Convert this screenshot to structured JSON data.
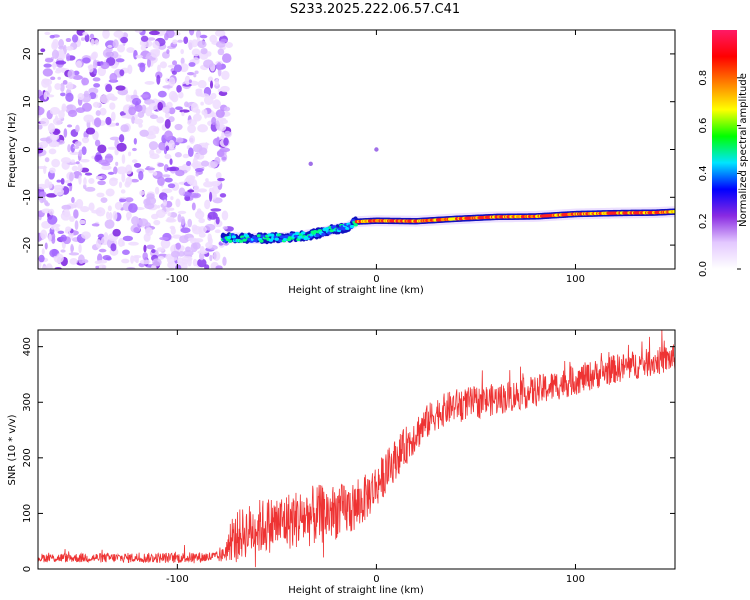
{
  "title": "S233.2025.222.06.57.C41",
  "chart_data": [
    {
      "type": "heatmap",
      "xlabel": "Height of straight line (km)",
      "ylabel": "Frequency (Hz)",
      "xlim": [
        -170,
        150
      ],
      "ylim": [
        -25,
        25
      ],
      "xticks": [
        -100,
        0,
        100
      ],
      "yticks": [
        -20,
        -10,
        0,
        10,
        20
      ],
      "colorbar": {
        "label": "Normalized spectral amplitude",
        "range": [
          0,
          1
        ],
        "ticks": [
          "0.0",
          "0.2",
          "0.4",
          "0.6",
          "0.8"
        ],
        "colors": [
          "#ffffff",
          "#e3c8ff",
          "#8a2be2",
          "#0000ff",
          "#00e5ff",
          "#00ff00",
          "#ffff00",
          "#ff8000",
          "#ff0000",
          "#ff1a66"
        ]
      },
      "noise_region_x": [
        -170,
        -77
      ],
      "ridge": {
        "x": [
          -77,
          -70,
          -60,
          -50,
          -40,
          -30,
          -20,
          -15,
          -10,
          0,
          20,
          40,
          60,
          80,
          100,
          120,
          140,
          150
        ],
        "y": [
          -18.5,
          -18.5,
          -18.6,
          -18.5,
          -18.2,
          -17.6,
          -16.6,
          -16.3,
          -15.1,
          -14.9,
          -15.0,
          -14.5,
          -14.1,
          -14.0,
          -13.5,
          -13.3,
          -13.2,
          -13.0
        ],
        "peak_amplitude_x": [
          -10,
          150
        ]
      },
      "outliers": [
        {
          "x": -33,
          "y": -3
        },
        {
          "x": 0,
          "y": 0
        }
      ]
    },
    {
      "type": "line",
      "xlabel": "Height of straight line (km)",
      "ylabel": "SNR (10 * v/v)",
      "xlim": [
        -170,
        150
      ],
      "ylim": [
        0,
        430
      ],
      "xticks": [
        -100,
        0,
        100
      ],
      "yticks": [
        0,
        100,
        200,
        300,
        400
      ],
      "series": [
        {
          "name": "SNR",
          "color": "#ee3333",
          "trend_x": [
            -170,
            -100,
            -78,
            -70,
            -60,
            -40,
            -25,
            -10,
            0,
            10,
            20,
            30,
            40,
            60,
            80,
            100,
            120,
            150
          ],
          "trend_y": [
            20,
            20,
            22,
            60,
            75,
            90,
            100,
            110,
            150,
            200,
            245,
            280,
            295,
            305,
            320,
            340,
            360,
            380
          ],
          "spread_x": [
            -170,
            -78,
            -70,
            -60,
            -30,
            0,
            30,
            150
          ],
          "spread_y": [
            8,
            10,
            45,
            50,
            55,
            40,
            30,
            25
          ]
        }
      ]
    }
  ]
}
